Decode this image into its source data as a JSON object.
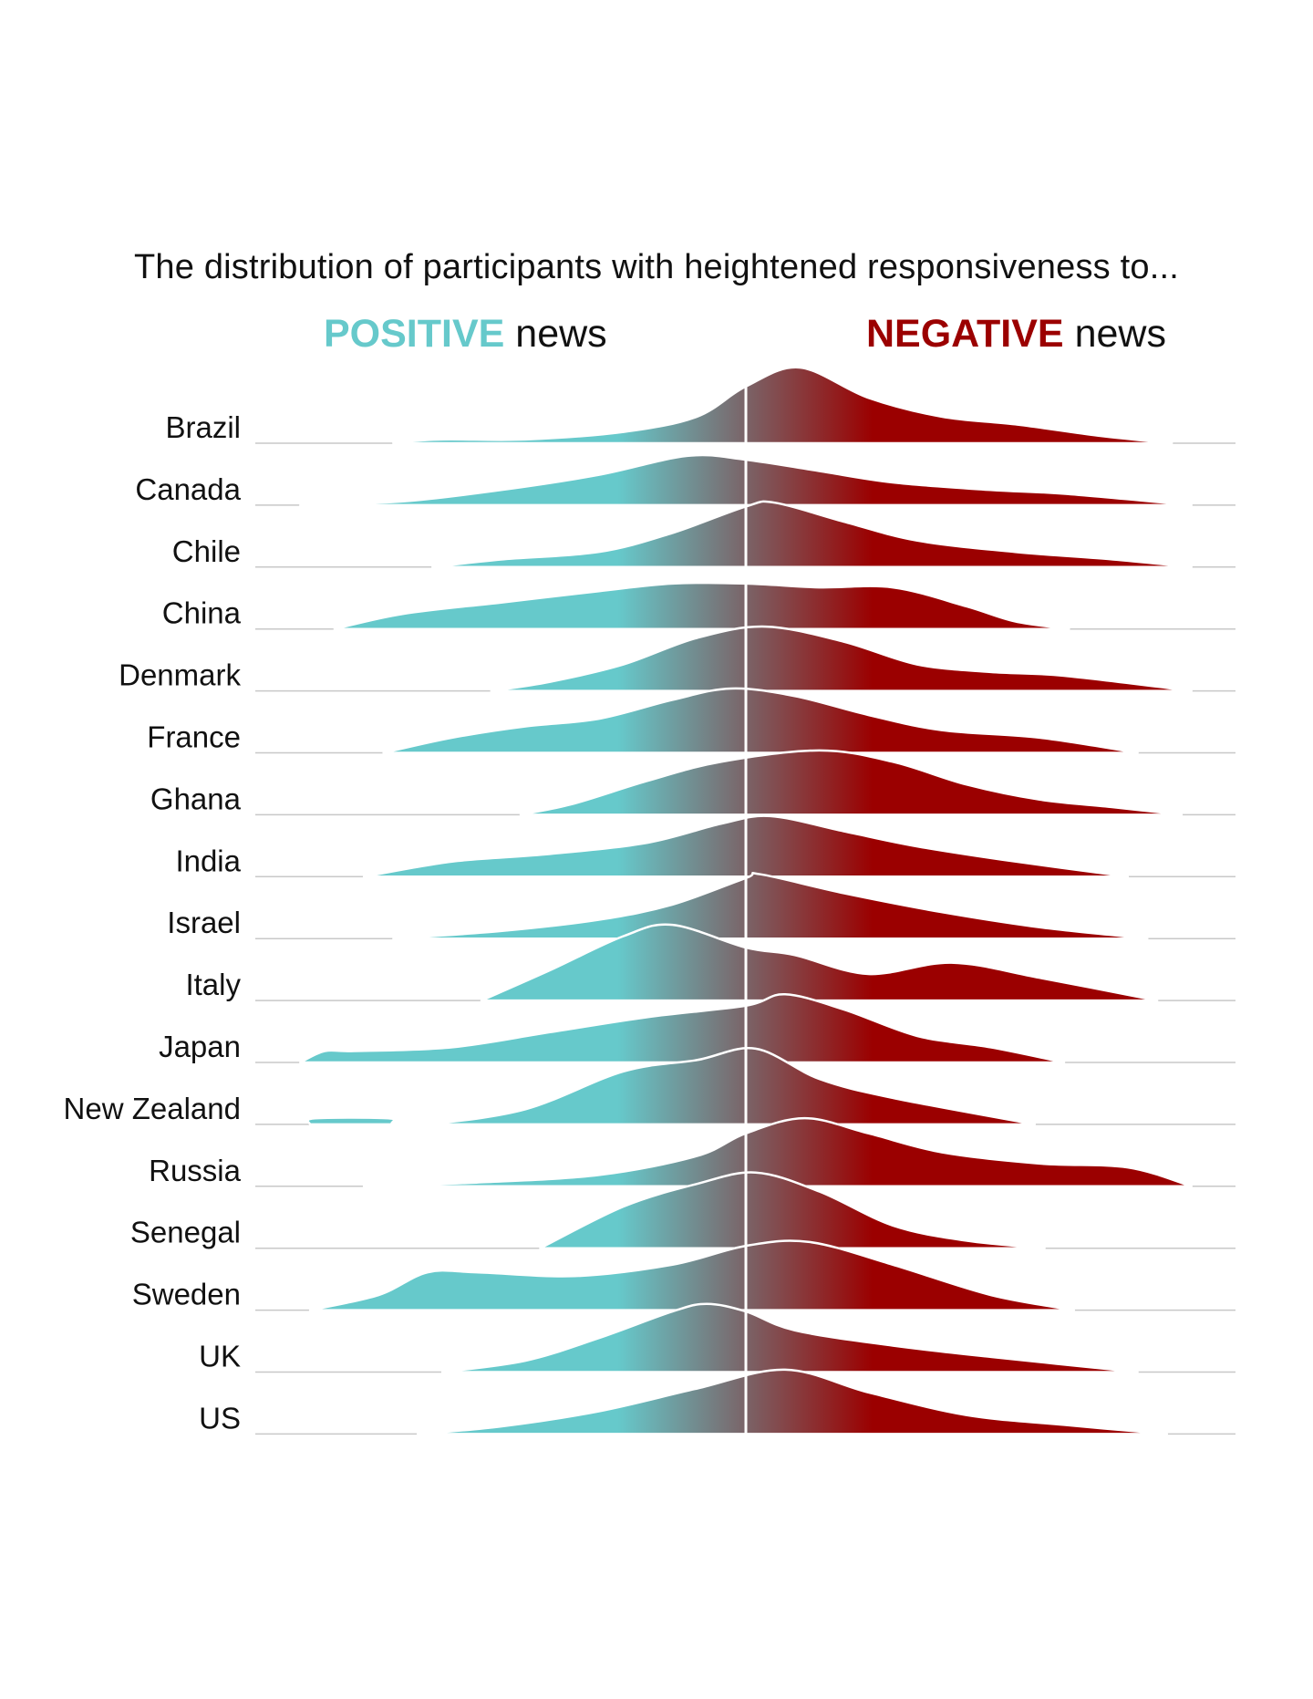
{
  "header": {
    "title": "The distribution of participants with heightened responsiveness to...",
    "positive_keyword": "POSITIVE",
    "negative_keyword": "NEGATIVE",
    "news_word": "news"
  },
  "colors": {
    "positive": "#66c9cb",
    "negative": "#9b0000",
    "midline": "#ffffff",
    "baseline": "#c8c8c8",
    "label_text": "#111111"
  },
  "chart_data": {
    "type": "ridgeline",
    "title": "The distribution of participants with heightened responsiveness to...",
    "x_direction": [
      "POSITIVE news",
      "NEGATIVE news"
    ],
    "x_unit_note": "",
    "xlim": [
      -1,
      1
    ],
    "categories": [
      "Brazil",
      "Canada",
      "Chile",
      "China",
      "Denmark",
      "France",
      "Ghana",
      "India",
      "Israel",
      "Italy",
      "Japan",
      "New Zealand",
      "Russia",
      "Senegal",
      "Sweden",
      "UK",
      "US"
    ],
    "series": [
      {
        "name": "Brazil",
        "points": [
          [
            -0.72,
            0.01
          ],
          [
            -0.62,
            0.05
          ],
          [
            -0.45,
            0.05
          ],
          [
            -0.25,
            0.15
          ],
          [
            -0.1,
            0.35
          ],
          [
            0.0,
            0.75
          ],
          [
            0.11,
            1.0
          ],
          [
            0.25,
            0.6
          ],
          [
            0.4,
            0.35
          ],
          [
            0.55,
            0.25
          ],
          [
            0.72,
            0.1
          ],
          [
            0.87,
            0.0
          ]
        ]
      },
      {
        "name": "Canada",
        "points": [
          [
            -0.91,
            0.0
          ],
          [
            -0.7,
            0.05
          ],
          [
            -0.5,
            0.2
          ],
          [
            -0.3,
            0.4
          ],
          [
            -0.12,
            0.65
          ],
          [
            0.0,
            0.6
          ],
          [
            0.15,
            0.45
          ],
          [
            0.3,
            0.3
          ],
          [
            0.5,
            0.2
          ],
          [
            0.65,
            0.15
          ],
          [
            0.91,
            0.0
          ]
        ]
      },
      {
        "name": "Chile",
        "points": [
          [
            -0.64,
            0.0
          ],
          [
            -0.5,
            0.1
          ],
          [
            -0.3,
            0.2
          ],
          [
            -0.15,
            0.45
          ],
          [
            0.0,
            0.8
          ],
          [
            0.06,
            0.85
          ],
          [
            0.2,
            0.6
          ],
          [
            0.35,
            0.35
          ],
          [
            0.55,
            0.2
          ],
          [
            0.75,
            0.1
          ],
          [
            0.91,
            0.0
          ]
        ]
      },
      {
        "name": "China",
        "points": [
          [
            -0.84,
            0.0
          ],
          [
            -0.7,
            0.2
          ],
          [
            -0.5,
            0.35
          ],
          [
            -0.3,
            0.5
          ],
          [
            -0.15,
            0.6
          ],
          [
            0.0,
            0.6
          ],
          [
            0.15,
            0.55
          ],
          [
            0.3,
            0.55
          ],
          [
            0.45,
            0.3
          ],
          [
            0.55,
            0.1
          ],
          [
            0.66,
            0.0
          ]
        ]
      },
      {
        "name": "Denmark",
        "points": [
          [
            -0.52,
            0.0
          ],
          [
            -0.4,
            0.12
          ],
          [
            -0.25,
            0.35
          ],
          [
            -0.1,
            0.7
          ],
          [
            0.04,
            0.85
          ],
          [
            0.2,
            0.65
          ],
          [
            0.35,
            0.35
          ],
          [
            0.5,
            0.25
          ],
          [
            0.65,
            0.2
          ],
          [
            0.91,
            0.0
          ]
        ]
      },
      {
        "name": "France",
        "points": [
          [
            -0.74,
            0.0
          ],
          [
            -0.6,
            0.2
          ],
          [
            -0.45,
            0.35
          ],
          [
            -0.3,
            0.45
          ],
          [
            -0.15,
            0.7
          ],
          [
            -0.03,
            0.85
          ],
          [
            0.1,
            0.75
          ],
          [
            0.25,
            0.5
          ],
          [
            0.4,
            0.3
          ],
          [
            0.6,
            0.2
          ],
          [
            0.8,
            0.0
          ]
        ]
      },
      {
        "name": "Ghana",
        "points": [
          [
            -0.46,
            0.0
          ],
          [
            -0.35,
            0.15
          ],
          [
            -0.2,
            0.45
          ],
          [
            -0.05,
            0.7
          ],
          [
            0.15,
            0.85
          ],
          [
            0.3,
            0.7
          ],
          [
            0.45,
            0.4
          ],
          [
            0.6,
            0.2
          ],
          [
            0.75,
            0.1
          ],
          [
            0.89,
            0.0
          ]
        ]
      },
      {
        "name": "India",
        "points": [
          [
            -0.78,
            0.0
          ],
          [
            -0.6,
            0.2
          ],
          [
            -0.4,
            0.3
          ],
          [
            -0.2,
            0.45
          ],
          [
            -0.05,
            0.7
          ],
          [
            0.05,
            0.8
          ],
          [
            0.2,
            0.6
          ],
          [
            0.35,
            0.4
          ],
          [
            0.55,
            0.2
          ],
          [
            0.78,
            0.0
          ]
        ]
      },
      {
        "name": "Israel",
        "points": [
          [
            -0.72,
            0.0
          ],
          [
            -0.5,
            0.1
          ],
          [
            -0.3,
            0.25
          ],
          [
            -0.15,
            0.45
          ],
          [
            0.0,
            0.8
          ],
          [
            0.03,
            0.85
          ],
          [
            0.2,
            0.6
          ],
          [
            0.4,
            0.35
          ],
          [
            0.6,
            0.15
          ],
          [
            0.82,
            0.0
          ]
        ]
      },
      {
        "name": "Italy",
        "points": [
          [
            -0.54,
            0.0
          ],
          [
            -0.4,
            0.4
          ],
          [
            -0.25,
            0.85
          ],
          [
            -0.15,
            1.0
          ],
          [
            0.0,
            0.7
          ],
          [
            0.1,
            0.6
          ],
          [
            0.25,
            0.35
          ],
          [
            0.42,
            0.5
          ],
          [
            0.6,
            0.3
          ],
          [
            0.84,
            0.0
          ]
        ]
      },
      {
        "name": "Japan",
        "points": [
          [
            -0.91,
            0.0
          ],
          [
            -0.86,
            0.15
          ],
          [
            -0.8,
            0.15
          ],
          [
            -0.6,
            0.2
          ],
          [
            -0.4,
            0.4
          ],
          [
            -0.2,
            0.6
          ],
          [
            0.0,
            0.75
          ],
          [
            0.08,
            0.9
          ],
          [
            0.2,
            0.7
          ],
          [
            0.35,
            0.35
          ],
          [
            0.5,
            0.2
          ],
          [
            0.65,
            0.0
          ]
        ]
      },
      {
        "name": "New Zealand",
        "points": [
          [
            -0.89,
            0.0
          ],
          [
            -0.88,
            0.08
          ],
          [
            -0.73,
            0.08
          ],
          [
            -0.72,
            0.0
          ],
          [
            -0.65,
            0.0
          ],
          [
            -0.45,
            0.2
          ],
          [
            -0.25,
            0.7
          ],
          [
            -0.1,
            0.85
          ],
          [
            0.02,
            1.0
          ],
          [
            0.15,
            0.6
          ],
          [
            0.3,
            0.35
          ],
          [
            0.59,
            0.0
          ]
        ]
      },
      {
        "name": "Russia",
        "points": [
          [
            -0.78,
            0.0
          ],
          [
            -0.55,
            0.05
          ],
          [
            -0.3,
            0.15
          ],
          [
            -0.1,
            0.4
          ],
          [
            0.0,
            0.7
          ],
          [
            0.12,
            0.9
          ],
          [
            0.25,
            0.7
          ],
          [
            0.4,
            0.45
          ],
          [
            0.6,
            0.3
          ],
          [
            0.78,
            0.25
          ],
          [
            0.91,
            0.0
          ]
        ]
      },
      {
        "name": "Senegal",
        "points": [
          [
            -0.42,
            0.0
          ],
          [
            -0.25,
            0.55
          ],
          [
            -0.1,
            0.85
          ],
          [
            0.02,
            1.0
          ],
          [
            0.15,
            0.75
          ],
          [
            0.3,
            0.3
          ],
          [
            0.45,
            0.1
          ],
          [
            0.61,
            0.0
          ]
        ]
      },
      {
        "name": "Sweden",
        "points": [
          [
            -0.89,
            0.0
          ],
          [
            -0.75,
            0.2
          ],
          [
            -0.65,
            0.5
          ],
          [
            -0.55,
            0.5
          ],
          [
            -0.35,
            0.45
          ],
          [
            -0.15,
            0.6
          ],
          [
            0.0,
            0.85
          ],
          [
            0.13,
            0.9
          ],
          [
            0.3,
            0.6
          ],
          [
            0.5,
            0.2
          ],
          [
            0.67,
            0.0
          ]
        ]
      },
      {
        "name": "UK",
        "points": [
          [
            -0.62,
            0.0
          ],
          [
            -0.45,
            0.15
          ],
          [
            -0.3,
            0.45
          ],
          [
            -0.15,
            0.8
          ],
          [
            -0.08,
            0.9
          ],
          [
            0.0,
            0.8
          ],
          [
            0.1,
            0.55
          ],
          [
            0.3,
            0.35
          ],
          [
            0.5,
            0.2
          ],
          [
            0.8,
            0.0
          ]
        ]
      },
      {
        "name": "US",
        "points": [
          [
            -0.67,
            0.0
          ],
          [
            -0.5,
            0.1
          ],
          [
            -0.3,
            0.3
          ],
          [
            -0.1,
            0.6
          ],
          [
            0.08,
            0.85
          ],
          [
            0.25,
            0.55
          ],
          [
            0.45,
            0.25
          ],
          [
            0.65,
            0.12
          ],
          [
            0.86,
            0.0
          ]
        ]
      }
    ]
  }
}
